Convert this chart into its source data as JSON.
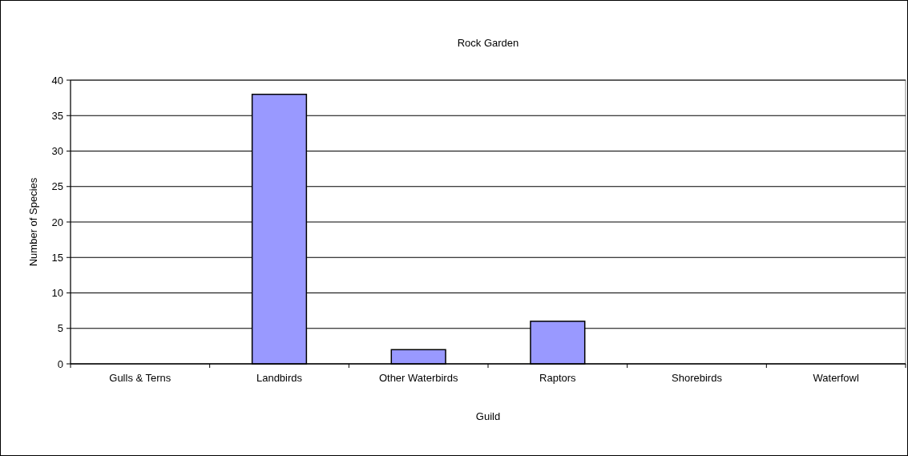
{
  "chart_data": {
    "type": "bar",
    "title": "Rock Garden",
    "xlabel": "Guild",
    "ylabel": "Number of Species",
    "categories": [
      "Gulls & Terns",
      "Landbirds",
      "Other Waterbirds",
      "Raptors",
      "Shorebirds",
      "Waterfowl"
    ],
    "values": [
      0,
      38,
      2,
      6,
      0,
      0
    ],
    "color": "#9999ff",
    "ylim": [
      0,
      40
    ],
    "yticks": [
      0,
      5,
      10,
      15,
      20,
      25,
      30,
      35,
      40
    ],
    "grid": "y"
  }
}
